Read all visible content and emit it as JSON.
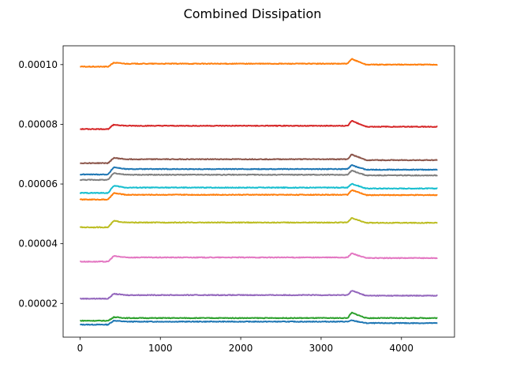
{
  "chart_data": {
    "type": "line",
    "title": "Combined Dissipation",
    "xlabel": "",
    "ylabel": "",
    "xlim": [
      -210,
      4660
    ],
    "ylim": [
      8.7e-06,
      0.0001063
    ],
    "xticks": [
      0,
      1000,
      2000,
      3000,
      4000
    ],
    "xtick_labels": [
      "0",
      "1000",
      "2000",
      "3000",
      "4000"
    ],
    "yticks": [
      2e-05,
      4e-05,
      6e-05,
      8e-05,
      0.0001
    ],
    "ytick_labels": [
      "0.00002",
      "0.00004",
      "0.00006",
      "0.00008",
      "0.00010"
    ],
    "grid": false,
    "legend": "none",
    "series": [
      {
        "color": "#1f77b4",
        "values": {
          "base": 1.29e-05,
          "step": 1.39e-05,
          "bump": 1.43e-05,
          "end": 1.34e-05
        }
      },
      {
        "color": "#2ca02c",
        "values": {
          "base": 1.42e-05,
          "step": 1.51e-05,
          "bump": 1.69e-05,
          "end": 1.51e-05
        }
      },
      {
        "color": "#9467bd",
        "values": {
          "base": 2.16e-05,
          "step": 2.28e-05,
          "bump": 2.43e-05,
          "end": 2.26e-05
        }
      },
      {
        "color": "#e377c2",
        "values": {
          "base": 3.4e-05,
          "step": 3.54e-05,
          "bump": 3.68e-05,
          "end": 3.52e-05
        }
      },
      {
        "color": "#bcbd22",
        "values": {
          "base": 4.55e-05,
          "step": 4.71e-05,
          "bump": 4.86e-05,
          "end": 4.7e-05
        }
      },
      {
        "color": "#ff7f0e",
        "values": {
          "base": 5.48e-05,
          "step": 5.64e-05,
          "bump": 5.8e-05,
          "end": 5.63e-05
        }
      },
      {
        "color": "#17becf",
        "values": {
          "base": 5.7e-05,
          "step": 5.88e-05,
          "bump": 6.01e-05,
          "end": 5.85e-05
        }
      },
      {
        "color": "#7f7f7f",
        "values": {
          "base": 6.14e-05,
          "step": 6.31e-05,
          "bump": 6.45e-05,
          "end": 6.29e-05
        }
      },
      {
        "color": "#1f77b4",
        "values": {
          "base": 6.32e-05,
          "step": 6.5e-05,
          "bump": 6.63e-05,
          "end": 6.48e-05
        }
      },
      {
        "color": "#8c564b",
        "values": {
          "base": 6.7e-05,
          "step": 6.83e-05,
          "bump": 6.99e-05,
          "end": 6.8e-05
        }
      },
      {
        "color": "#d62728",
        "values": {
          "base": 7.84e-05,
          "step": 7.95e-05,
          "bump": 8.12e-05,
          "end": 7.92e-05
        }
      },
      {
        "color": "#ff7f0e",
        "values": {
          "base": 9.93e-05,
          "step": 0.0001003,
          "bump": 0.0001019,
          "end": 0.0001
        }
      }
    ],
    "shape": {
      "x_start": 0,
      "x_step_start": 350,
      "x_step_end": 420,
      "x_bump_start": 3330,
      "x_bump_peak": 3380,
      "x_bump_end": 3560,
      "x_end": 4450
    }
  }
}
